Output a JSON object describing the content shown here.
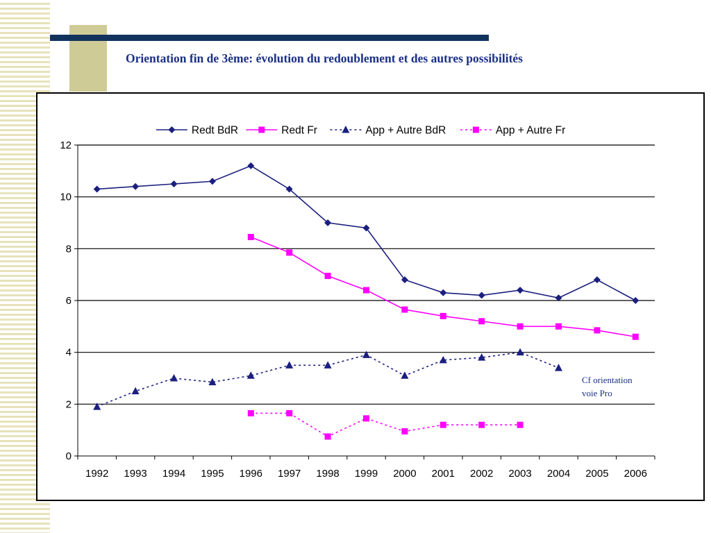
{
  "slide": {
    "title": "Orientation fin de 3ème: évolution du redoublement et des autres possibilités"
  },
  "annotation": {
    "line1": "Cf orientation",
    "line2": "voie Pro"
  },
  "chart_data": {
    "type": "line",
    "title": "",
    "xlabel": "",
    "ylabel": "",
    "x": [
      "1992",
      "1993",
      "1994",
      "1995",
      "1996",
      "1997",
      "1998",
      "1999",
      "2000",
      "2001",
      "2002",
      "2003",
      "2004",
      "2005",
      "2006"
    ],
    "ylim": [
      0,
      12
    ],
    "yticks": [
      0,
      2,
      4,
      6,
      8,
      10,
      12
    ],
    "grid": "horizontal major",
    "legend_position": "top",
    "series": [
      {
        "name": "Redt BdR",
        "color": "#1b1f7e",
        "marker": "diamond",
        "dash": "solid",
        "values": [
          10.3,
          10.4,
          10.5,
          10.6,
          11.2,
          10.3,
          9.0,
          8.8,
          6.8,
          6.3,
          6.2,
          6.4,
          6.1,
          6.8,
          6.0
        ]
      },
      {
        "name": "Redt Fr",
        "color": "#ff00ff",
        "marker": "square",
        "dash": "solid",
        "values": [
          null,
          null,
          null,
          null,
          8.45,
          7.85,
          6.95,
          6.4,
          5.65,
          5.4,
          5.2,
          5.0,
          5.0,
          4.85,
          4.6
        ]
      },
      {
        "name": "App + Autre BdR",
        "color": "#1b1f7e",
        "marker": "triangle",
        "dash": "dotted",
        "values": [
          1.9,
          2.5,
          3.0,
          2.85,
          3.1,
          3.5,
          3.5,
          3.9,
          3.1,
          3.7,
          3.8,
          4.0,
          3.4,
          null,
          null
        ]
      },
      {
        "name": "App + Autre Fr",
        "color": "#ff00ff",
        "marker": "square",
        "dash": "dotted",
        "values": [
          null,
          null,
          null,
          null,
          1.65,
          1.65,
          0.75,
          1.45,
          0.95,
          1.2,
          1.2,
          1.2,
          null,
          null,
          null
        ]
      }
    ]
  }
}
